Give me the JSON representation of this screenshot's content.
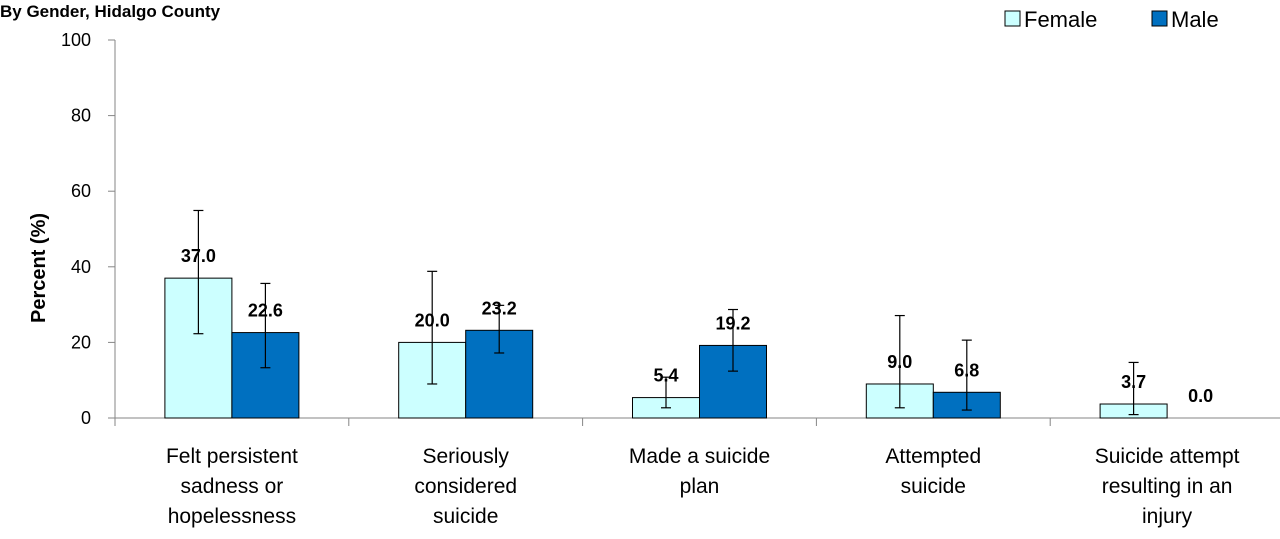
{
  "chart_data": {
    "type": "bar",
    "subtitle": "By Gender, Hidalgo County",
    "ylabel": "Percent (%)",
    "xlabel": "",
    "ylim": [
      0,
      100
    ],
    "yticks": [
      0,
      20,
      40,
      60,
      80,
      100
    ],
    "legend_position": "top-right",
    "grid": false,
    "categories": [
      [
        "Felt persistent",
        "sadness or",
        "hopelessness"
      ],
      [
        "Seriously",
        "considered",
        "suicide"
      ],
      [
        "Made a suicide",
        "plan"
      ],
      [
        "Attempted",
        "suicide"
      ],
      [
        "Suicide attempt",
        "resulting in an",
        "injury"
      ]
    ],
    "series": [
      {
        "name": "Female",
        "color": "#CCFFFF",
        "values": [
          37.0,
          20.0,
          5.4,
          9.0,
          3.7
        ],
        "labels": [
          "37.0",
          "20.0",
          "5.4",
          "9.0",
          "3.7"
        ],
        "ci_low": [
          22.3,
          9.0,
          2.7,
          2.7,
          0.9
        ],
        "ci_high": [
          54.9,
          38.8,
          10.8,
          27.1,
          14.7
        ]
      },
      {
        "name": "Male",
        "color": "#0070C0",
        "values": [
          22.6,
          23.2,
          19.2,
          6.8,
          0.0
        ],
        "labels": [
          "22.6",
          "23.2",
          "19.2",
          "6.8",
          "0.0"
        ],
        "ci_low": [
          13.3,
          17.2,
          12.4,
          2.1,
          0.0
        ],
        "ci_high": [
          35.6,
          29.8,
          28.7,
          20.6,
          0.0
        ]
      }
    ]
  }
}
